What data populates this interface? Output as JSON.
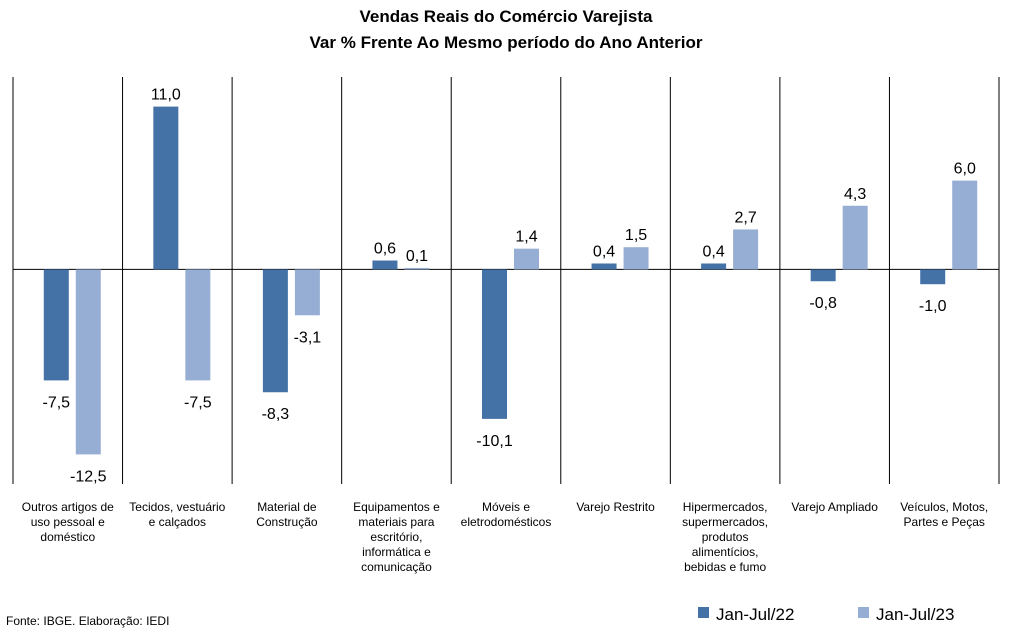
{
  "chart_data": {
    "type": "bar",
    "title": "Vendas Reais do Comércio Varejista",
    "subtitle": "Var % Frente Ao Mesmo período do Ano Anterior",
    "xlabel": "",
    "ylabel": "",
    "ylim": [
      -14.5,
      13.0
    ],
    "grid": false,
    "legend_position": "bottom-right",
    "categories": [
      [
        "Outros artigos de",
        "uso pessoal e",
        "doméstico"
      ],
      [
        "Tecidos, vestuário",
        "e calçados"
      ],
      [
        "Material de",
        "Construção"
      ],
      [
        "Equipamentos e",
        "materiais para",
        "escritório,",
        "informática e",
        "comunicação"
      ],
      [
        "Móveis e",
        "eletrodomésticos"
      ],
      [
        "Varejo Restrito"
      ],
      [
        "Hipermercados,",
        "supermercados,",
        "produtos",
        "alimentícios,",
        "bebidas e fumo"
      ],
      [
        "Varejo Ampliado"
      ],
      [
        "Veículos, Motos,",
        "Partes e Peças"
      ]
    ],
    "series": [
      {
        "name": "Jan-Jul/22",
        "color": "#4472a6",
        "values": [
          -7.5,
          11.0,
          -8.3,
          0.6,
          -10.1,
          0.4,
          0.4,
          -0.8,
          -1.0
        ],
        "labels": [
          "-7,5",
          "11,0",
          "-8,3",
          "0,6",
          "-10,1",
          "0,4",
          "0,4",
          "-0,8",
          "-1,0"
        ]
      },
      {
        "name": "Jan-Jul/23",
        "color": "#97aed4",
        "values": [
          -12.5,
          -7.5,
          -3.1,
          0.1,
          1.4,
          1.5,
          2.7,
          4.3,
          6.0
        ],
        "labels": [
          "-12,5",
          "-7,5",
          "-3,1",
          "0,1",
          "1,4",
          "1,5",
          "2,7",
          "4,3",
          "6,0"
        ]
      }
    ]
  },
  "footer": {
    "source": "Fonte: IBGE. Elaboração: IEDI"
  }
}
